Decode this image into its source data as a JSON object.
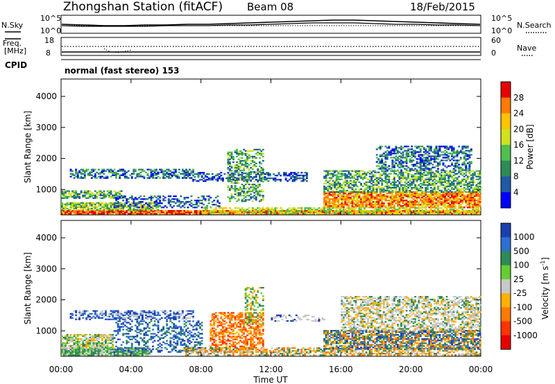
{
  "header": {
    "station": "Zhongshan Station (fitACF)",
    "beam": "Beam 08",
    "date": "18/Feb/2015"
  },
  "mini_panels": {
    "noise_left_label": "N.Sky",
    "noise_right_label": "N.Search",
    "noise_ticks": [
      "10^5",
      "10^0"
    ],
    "freq_left_label_1": "Freq.",
    "freq_left_label_2": "[MHz]",
    "freq_ticks": [
      "18",
      "8"
    ],
    "nave_label": "Nave",
    "nave_ticks": [
      "60",
      "0"
    ],
    "cpid_label": "CPID",
    "cpid_text": "normal (fast stereo) 153"
  },
  "chart_data": [
    {
      "type": "heatmap",
      "panel": "power",
      "ylabel": "Slant Range [km]",
      "y_ticks": [
        "1000",
        "2000",
        "3000",
        "4000"
      ],
      "ylim": [
        180,
        4560
      ],
      "xlim": [
        0,
        24
      ],
      "colorbar_label": "Power [dB]",
      "colorbar_ticks": [
        "28",
        "24",
        "20",
        "16",
        "12",
        "8",
        "4"
      ],
      "colorbar_colors": [
        "#e60000",
        "#ff7a00",
        "#ffc400",
        "#cfe11f",
        "#4fbf4f",
        "#2e8b57",
        "#1f5aa6",
        "#0000ff"
      ]
    },
    {
      "type": "heatmap",
      "panel": "velocity",
      "ylabel": "Slant Range [km]",
      "y_ticks": [
        "1000",
        "2000",
        "3000",
        "4000"
      ],
      "ylim": [
        180,
        4560
      ],
      "xlim": [
        0,
        24
      ],
      "xlabel": "Time UT",
      "x_ticks": [
        "00:00",
        "04:00",
        "08:00",
        "12:00",
        "16:00",
        "20:00",
        "00:00"
      ],
      "colorbar_label": "Velocity [m s",
      "colorbar_label_sup": "-1",
      "colorbar_ticks": [
        "1000",
        "500",
        "100",
        "25",
        "-25",
        "-100",
        "-500",
        "-1000"
      ],
      "colorbar_colors": [
        "#1a3fb0",
        "#2e6fd0",
        "#2e8b57",
        "#66cc33",
        "#c8c8c8",
        "#ffb000",
        "#ff7a00",
        "#ff3300",
        "#e60000"
      ]
    }
  ]
}
